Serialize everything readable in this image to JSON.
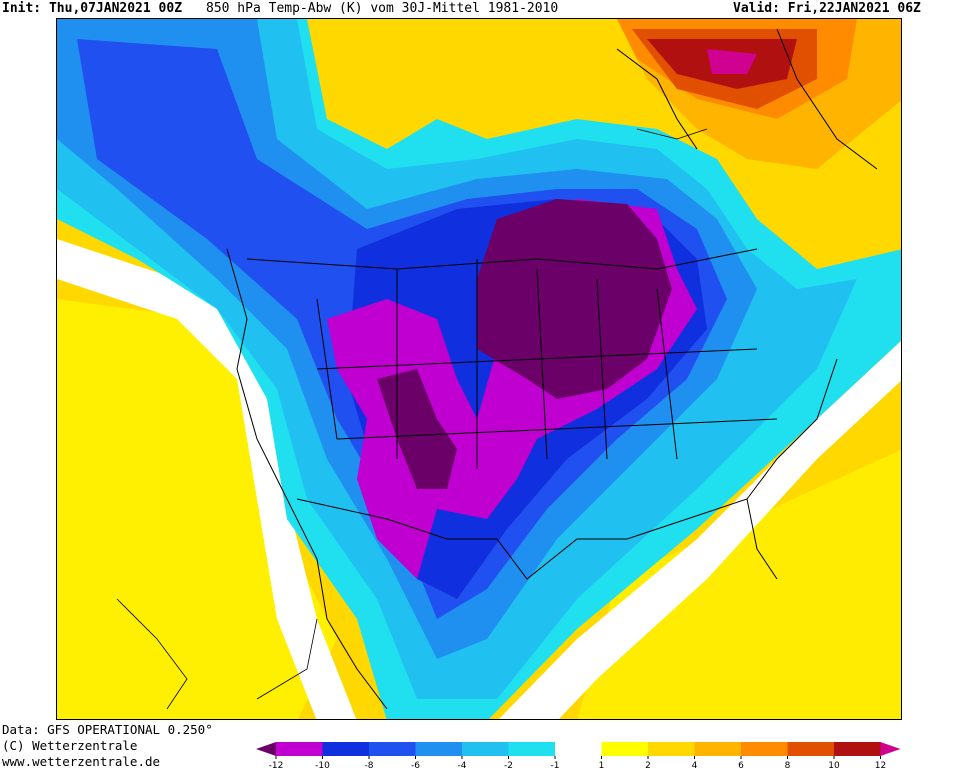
{
  "header": {
    "init_label": "Init:",
    "init_value": "Thu,07JAN2021 00Z",
    "title": "850 hPa Temp-Abw (K) vom 30J-Mittel 1981-2010",
    "valid_label": "Valid:",
    "valid_value": "Fri,22JAN2021 06Z"
  },
  "footer": {
    "data_source": "Data: GFS OPERATIONAL 0.250°",
    "copyright": "(C) Wetterzentrale",
    "website": "www.wetterzentrale.de"
  },
  "legend": {
    "ticks": [
      "-12",
      "-10",
      "-8",
      "-6",
      "-4",
      "-2",
      "-1",
      "1",
      "2",
      "4",
      "6",
      "8",
      "10",
      "12"
    ],
    "colors": [
      "#6a0068",
      "#c000d0",
      "#1030e0",
      "#2050f0",
      "#2090f0",
      "#20c0f0",
      "#20e0f0",
      "#ffffff",
      "#ffff00",
      "#ffd800",
      "#ffb400",
      "#ff8c00",
      "#e05000",
      "#b01010",
      "#d00090"
    ]
  },
  "map": {
    "colors": {
      "deep_purple": "#6a0068",
      "magenta": "#c000d0",
      "blue": "#1030e0",
      "mid_blue": "#2050f0",
      "light_blue": "#2090f0",
      "cyan": "#20c0f0",
      "pale_cyan": "#20e0f0",
      "neutral": "#ffffff",
      "yellow": "#ffff00",
      "gold": "#ffd800",
      "orange": "#ffb400",
      "dark_orange": "#ff8c00",
      "red": "#b01010",
      "pink": "#d00090"
    }
  }
}
